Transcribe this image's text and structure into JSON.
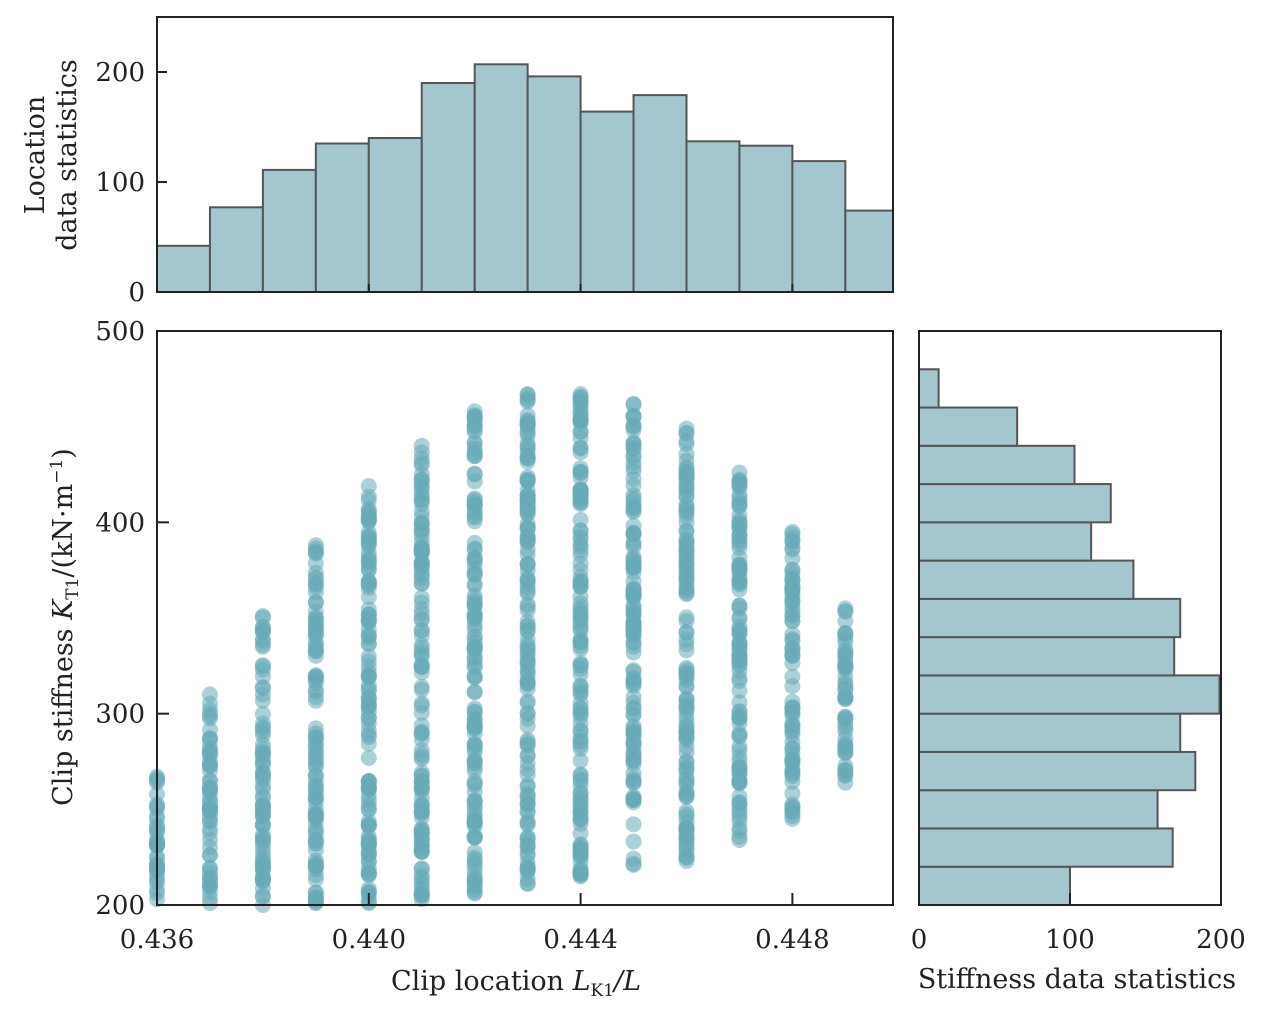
{
  "chart_data": [
    {
      "type": "bar",
      "role": "top-histogram",
      "ylabel_line1": "Location",
      "ylabel_line2": "data statistics",
      "ylim": [
        0,
        250
      ],
      "yticks": [
        "0",
        "100",
        "200"
      ],
      "x_range": [
        0.436,
        0.4499
      ],
      "bin_edges": [
        0.436,
        0.437,
        0.438,
        0.439,
        0.44,
        0.441,
        0.442,
        0.443,
        0.444,
        0.445,
        0.446,
        0.447,
        0.448,
        0.449,
        0.4499
      ],
      "values": [
        42,
        77,
        111,
        135,
        140,
        190,
        207,
        196,
        164,
        179,
        137,
        133,
        119,
        74
      ]
    },
    {
      "type": "scatter",
      "role": "main",
      "xlabel_prefix": "Clip location ",
      "xlabel_var": "L",
      "xlabel_sub": "K1",
      "xlabel_suffix": "/L",
      "ylabel_prefix": "Clip stiffness ",
      "ylabel_var": "K",
      "ylabel_sub": "T1",
      "ylabel_suffix": "/(kN·m",
      "ylabel_sup": "−1",
      "ylabel_end": ")",
      "xlim": [
        0.436,
        0.4499
      ],
      "ylim": [
        200,
        500
      ],
      "xticks": [
        "0.436",
        "0.440",
        "0.444",
        "0.448"
      ],
      "yticks": [
        "200",
        "300",
        "400",
        "500"
      ],
      "columns": [
        {
          "x": 0.436,
          "ymin": 203,
          "ymax": 267
        },
        {
          "x": 0.437,
          "ymin": 201,
          "ymax": 310
        },
        {
          "x": 0.438,
          "ymin": 200,
          "ymax": 351
        },
        {
          "x": 0.439,
          "ymin": 201,
          "ymax": 388
        },
        {
          "x": 0.44,
          "ymin": 201,
          "ymax": 419
        },
        {
          "x": 0.441,
          "ymin": 203,
          "ymax": 440
        },
        {
          "x": 0.442,
          "ymin": 206,
          "ymax": 458
        },
        {
          "x": 0.443,
          "ymin": 211,
          "ymax": 467
        },
        {
          "x": 0.444,
          "ymin": 215,
          "ymax": 467
        },
        {
          "x": 0.445,
          "ymin": 221,
          "ymax": 462
        },
        {
          "x": 0.446,
          "ymin": 223,
          "ymax": 449
        },
        {
          "x": 0.447,
          "ymin": 234,
          "ymax": 426
        },
        {
          "x": 0.448,
          "ymin": 245,
          "ymax": 395
        },
        {
          "x": 0.449,
          "ymin": 264,
          "ymax": 355
        }
      ]
    },
    {
      "type": "bar",
      "orientation": "horizontal",
      "role": "right-histogram",
      "xlabel": "Stiffness data statistics",
      "xlim": [
        0,
        200
      ],
      "xticks": [
        "0",
        "100",
        "200"
      ],
      "bin_edges": [
        200,
        220,
        240,
        260,
        280,
        300,
        320,
        340,
        360,
        380,
        400,
        420,
        440,
        460,
        480,
        500
      ],
      "values": [
        100,
        168,
        158,
        183,
        173,
        199,
        169,
        173,
        142,
        114,
        127,
        103,
        65,
        13,
        0
      ]
    }
  ]
}
